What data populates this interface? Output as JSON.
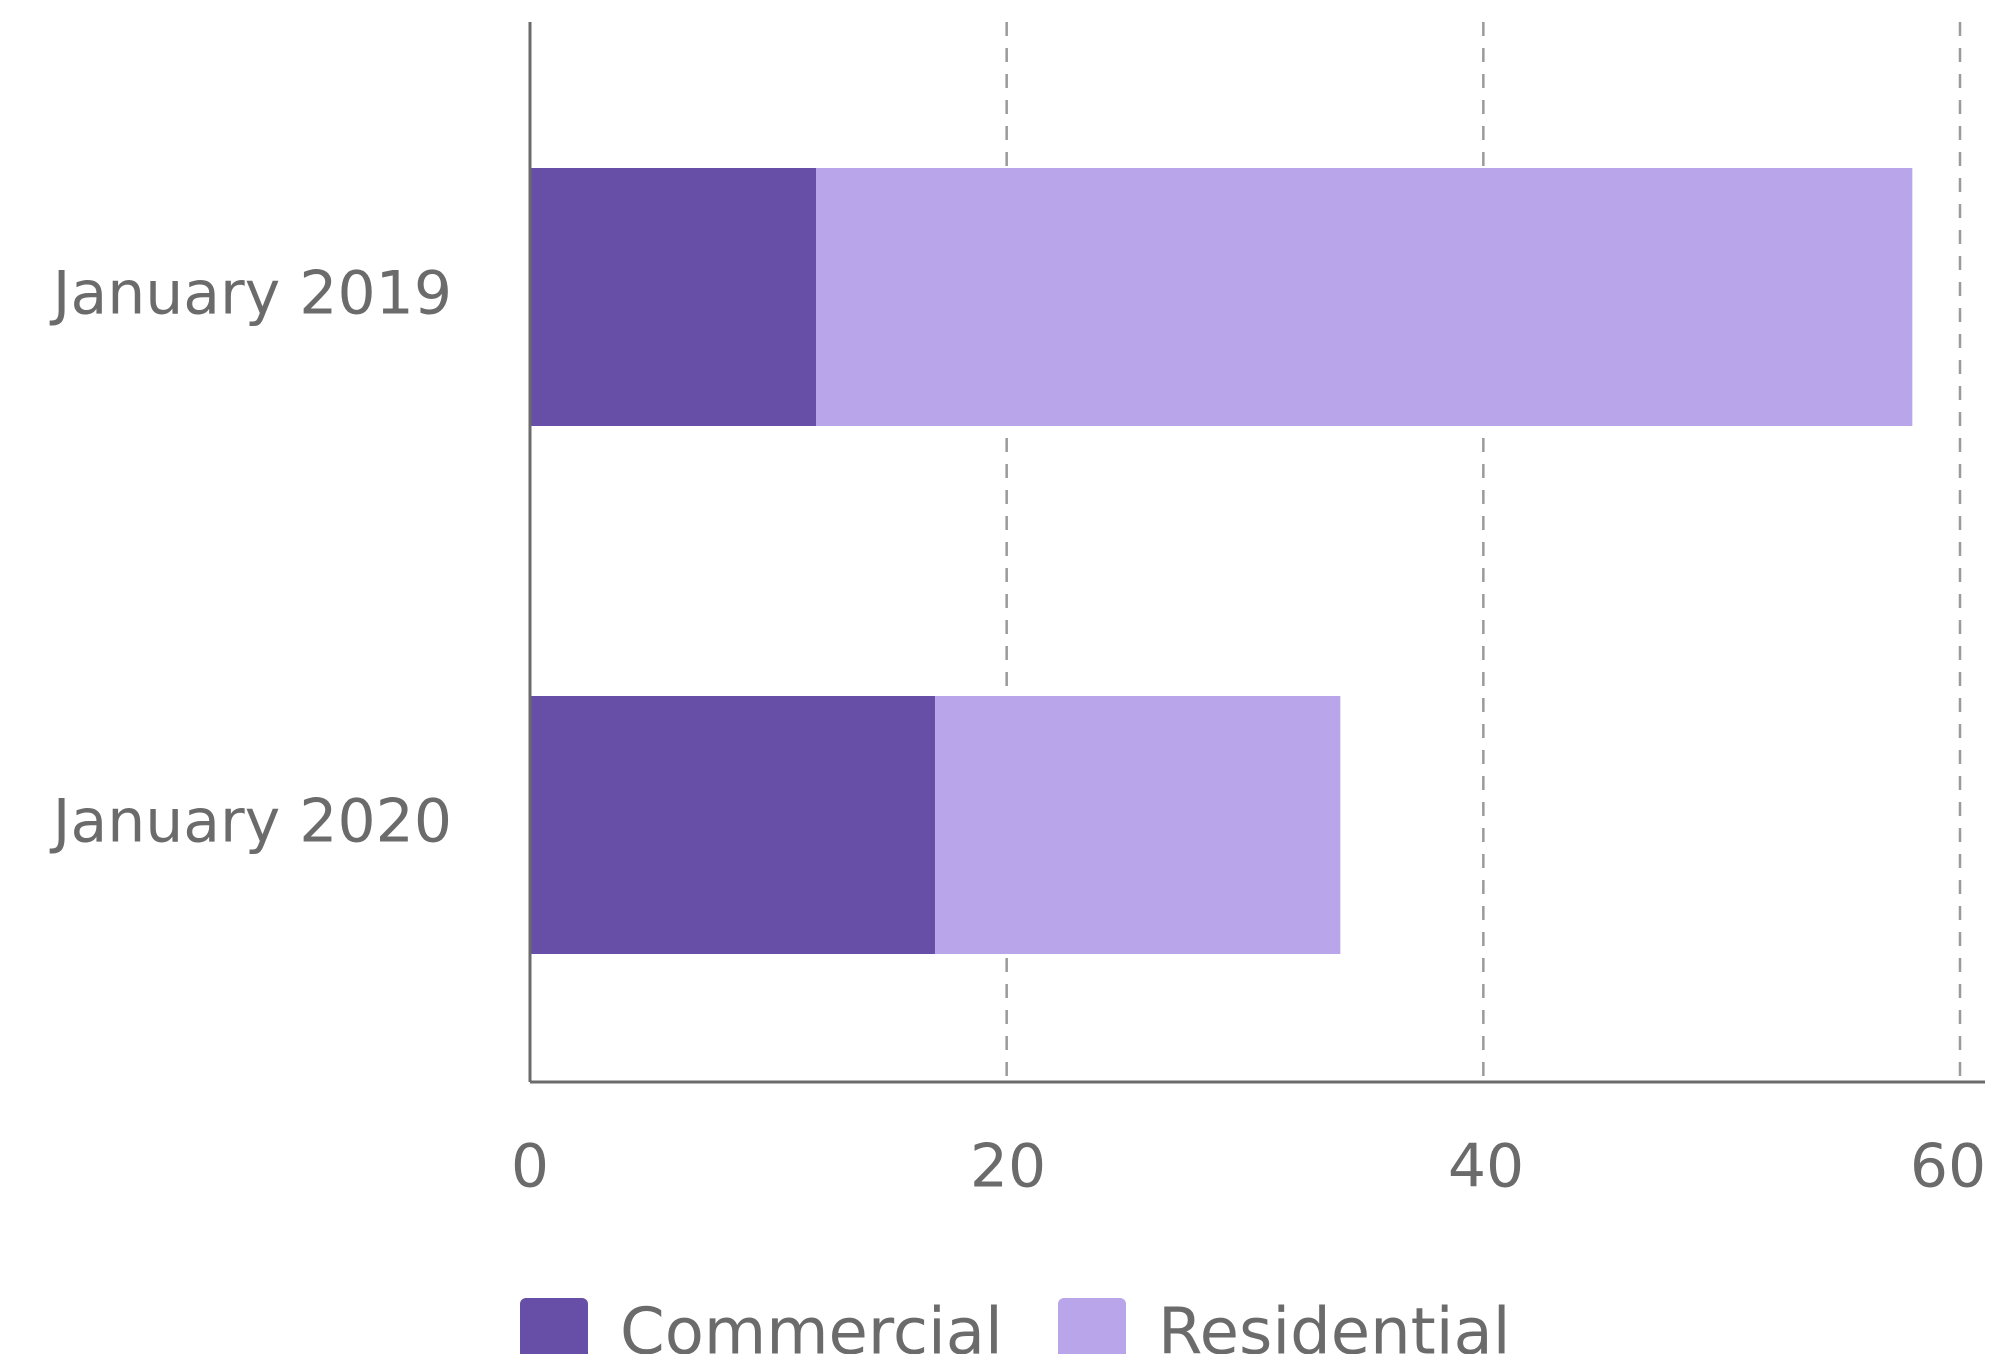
{
  "chart_data": {
    "type": "bar",
    "orientation": "horizontal",
    "stacked": true,
    "categories": [
      "January 2019",
      "January 2020"
    ],
    "series": [
      {
        "name": "Commercial",
        "values": [
          12,
          17
        ],
        "color": "#674ea7"
      },
      {
        "name": "Residential",
        "values": [
          46,
          17
        ],
        "color": "#b9a6ea"
      }
    ],
    "x_ticks": [
      "0",
      "20",
      "40",
      "60"
    ],
    "xlim": [
      0,
      60
    ],
    "grid": true,
    "grid_style": "dashed vertical",
    "legend": {
      "position": "bottom",
      "items": [
        "Commercial",
        "Residential"
      ]
    },
    "colors": {
      "axis": "#6b6b6b",
      "grid": "#9a9a9a",
      "text": "#6b6b6b"
    }
  }
}
